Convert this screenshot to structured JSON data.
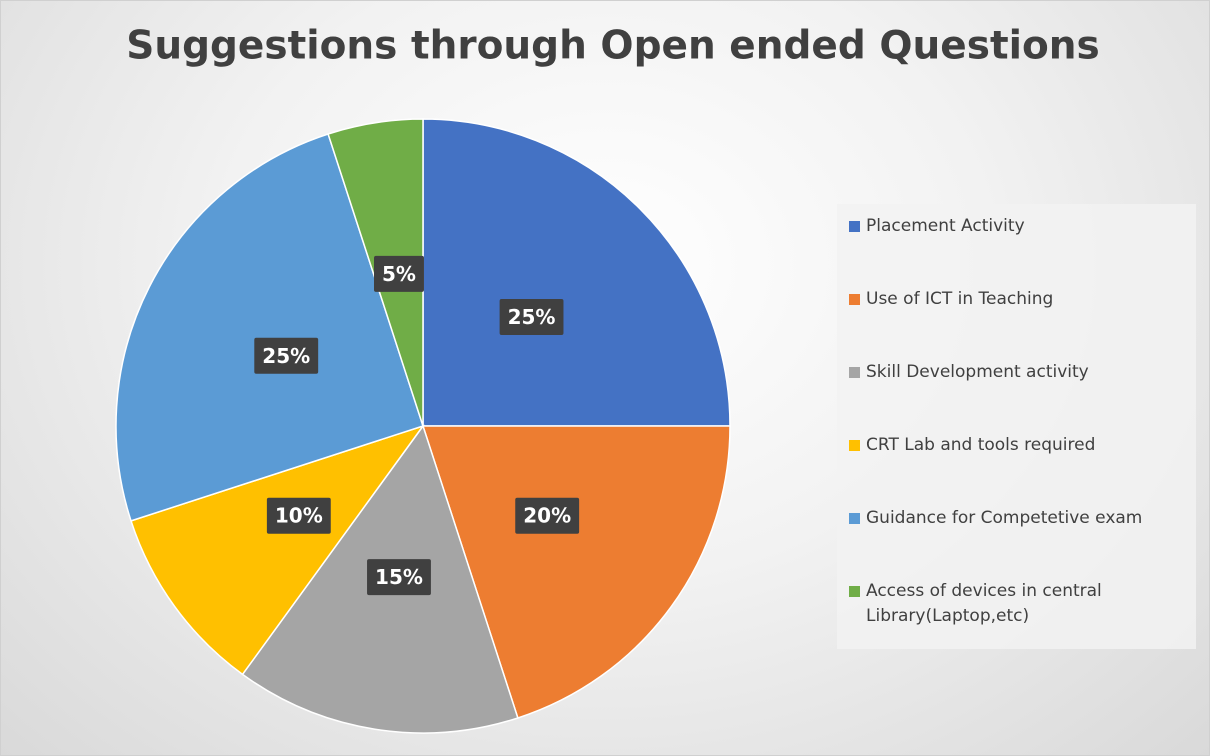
{
  "chart_data": {
    "type": "pie",
    "title": "Suggestions through Open ended Questions",
    "categories": [
      "Placement Activity",
      "Use of ICT in Teaching",
      "Skill Development activity",
      "CRT Lab and tools required",
      "Guidance for Competetive exam",
      "Access of devices in central Library(Laptop,etc)"
    ],
    "values": [
      25,
      20,
      15,
      10,
      25,
      5
    ],
    "value_labels": [
      "25%",
      "20%",
      "15%",
      "10%",
      "25%",
      "5%"
    ],
    "colors": [
      "#4472c4",
      "#ed7d31",
      "#a5a5a5",
      "#ffc000",
      "#5b9bd5",
      "#70ad47"
    ],
    "legend": "right"
  }
}
